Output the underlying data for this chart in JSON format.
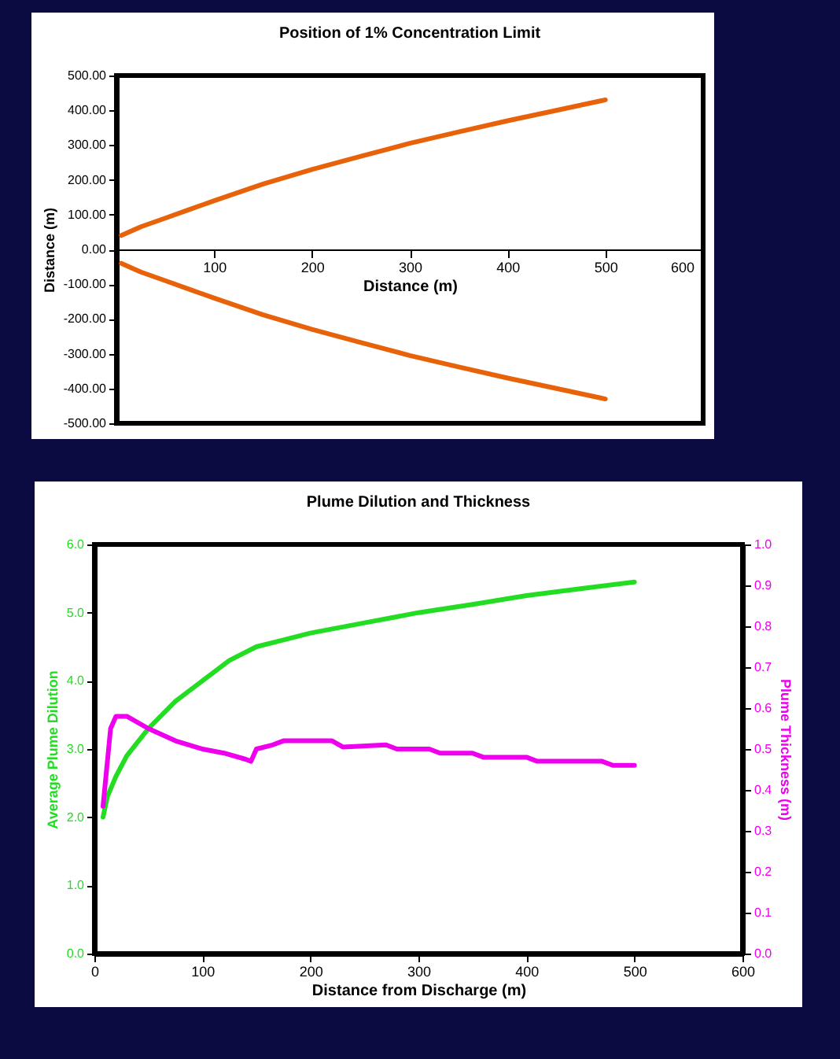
{
  "chart_data": [
    {
      "type": "line",
      "title": "Position of 1% Concentration Limit",
      "xlabel": "Distance (m)",
      "ylabel": "Distance (m)",
      "xlim": [
        0,
        600
      ],
      "xticks": [
        {
          "value": 0,
          "label": null
        },
        100,
        200,
        300,
        400,
        500,
        600
      ],
      "ylim": [
        -500,
        500
      ],
      "yticks": [
        {
          "value": -500,
          "label": "-500.00"
        },
        {
          "value": -400,
          "label": "-400.00"
        },
        {
          "value": -300,
          "label": "-300.00"
        },
        {
          "value": -200,
          "label": "-200.00"
        },
        {
          "value": -100,
          "label": "-100.00"
        },
        {
          "value": 0,
          "label": "0.00"
        },
        {
          "value": 100,
          "label": "100.00"
        },
        {
          "value": 200,
          "label": "200.00"
        },
        {
          "value": 300,
          "label": "300.00"
        },
        {
          "value": 400,
          "label": "400.00"
        },
        {
          "value": 500,
          "label": "500.00"
        }
      ],
      "x": [
        5,
        25,
        50,
        75,
        100,
        150,
        200,
        250,
        300,
        350,
        400,
        450,
        500
      ],
      "series": [
        {
          "color": "#e8620a",
          "values": [
            40,
            65,
            90,
            115,
            140,
            188,
            230,
            268,
            305,
            338,
            370,
            400,
            430
          ]
        },
        {
          "color": "#e8620a",
          "values": [
            -40,
            -65,
            -90,
            -115,
            -140,
            -188,
            -230,
            -268,
            -305,
            -338,
            -370,
            -400,
            -430
          ]
        }
      ],
      "grid": false,
      "marker": "none",
      "line_style": "solid"
    },
    {
      "type": "line",
      "title": "Plume Dilution and Thickness",
      "xlabel": "Distance from Discharge (m)",
      "ylabel": "Average Plume Dilution",
      "y2label": "Plume Thickness (m)",
      "xlim": [
        0,
        600
      ],
      "xticks": [
        0,
        100,
        200,
        300,
        400,
        500,
        600
      ],
      "ylim": [
        0,
        6
      ],
      "yticks": [
        {
          "value": 0,
          "label": "0.0"
        },
        {
          "value": 1,
          "label": "1.0"
        },
        {
          "value": 2,
          "label": "2.0"
        },
        {
          "value": 3,
          "label": "3.0"
        },
        {
          "value": 4,
          "label": "4.0"
        },
        {
          "value": 5,
          "label": "5.0"
        },
        {
          "value": 6,
          "label": "6.0"
        }
      ],
      "y2lim": [
        0,
        1
      ],
      "y2ticks": [
        {
          "value": 0,
          "label": "0.0"
        },
        0.1,
        0.2,
        0.3,
        0.4,
        0.5,
        0.6,
        0.7,
        0.8,
        0.9,
        {
          "value": 1,
          "label": "1.0"
        }
      ],
      "series": [
        {
          "color": "#22dd22",
          "x": [
            8,
            12,
            20,
            30,
            50,
            75,
            100,
            125,
            150,
            175,
            200,
            250,
            300,
            350,
            400,
            450,
            500
          ],
          "values": [
            2.0,
            2.3,
            2.6,
            2.9,
            3.3,
            3.7,
            4.0,
            4.3,
            4.5,
            4.6,
            4.7,
            4.85,
            5.0,
            5.12,
            5.25,
            5.35,
            5.45
          ]
        },
        {
          "color": "#ee00ee",
          "axis": "y2",
          "x": [
            8,
            15,
            20,
            30,
            50,
            75,
            100,
            120,
            140,
            145,
            150,
            165,
            175,
            220,
            230,
            270,
            280,
            310,
            320,
            350,
            360,
            400,
            410,
            470,
            480,
            500
          ],
          "values": [
            0.36,
            0.55,
            0.58,
            0.58,
            0.55,
            0.52,
            0.5,
            0.49,
            0.475,
            0.47,
            0.5,
            0.51,
            0.52,
            0.52,
            0.505,
            0.51,
            0.5,
            0.5,
            0.49,
            0.49,
            0.48,
            0.48,
            0.47,
            0.47,
            0.46,
            0.46
          ]
        }
      ],
      "grid": false,
      "marker": "none",
      "line_style": "solid"
    }
  ]
}
